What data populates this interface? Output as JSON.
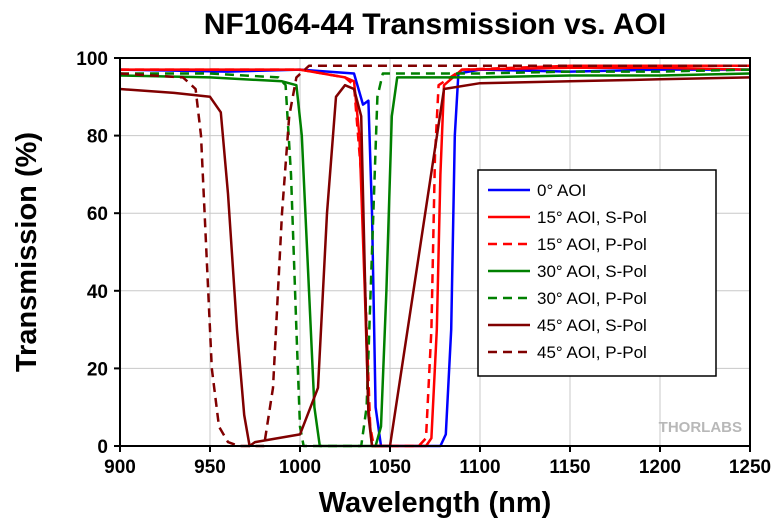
{
  "chart_data": {
    "type": "line",
    "title": "NF1064-44 Transmission vs. AOI",
    "xlabel": "Wavelength (nm)",
    "ylabel": "Transmission (%)",
    "xlim": [
      900,
      1250
    ],
    "ylim": [
      0,
      100
    ],
    "x_ticks": [
      900,
      950,
      1000,
      1050,
      1100,
      1150,
      1200,
      1250
    ],
    "y_ticks": [
      0,
      20,
      40,
      60,
      80,
      100
    ],
    "grid": true,
    "legend_position": "center-right",
    "watermark": "THORLABS",
    "series": [
      {
        "name": "0° AOI",
        "color": "#0000ff",
        "dash": "solid",
        "points": [
          [
            900,
            97
          ],
          [
            960,
            96.5
          ],
          [
            1000,
            97
          ],
          [
            1030,
            96
          ],
          [
            1035,
            88
          ],
          [
            1038,
            89
          ],
          [
            1040,
            60
          ],
          [
            1042,
            10
          ],
          [
            1045,
            0
          ],
          [
            1078,
            0
          ],
          [
            1081,
            3
          ],
          [
            1084,
            30
          ],
          [
            1086,
            80
          ],
          [
            1088,
            96
          ],
          [
            1100,
            97
          ],
          [
            1150,
            96.5
          ],
          [
            1200,
            97
          ],
          [
            1250,
            97
          ]
        ]
      },
      {
        "name": "15° AOI, S-Pol",
        "color": "#ff0000",
        "dash": "solid",
        "points": [
          [
            900,
            97
          ],
          [
            960,
            97
          ],
          [
            1000,
            97
          ],
          [
            1025,
            95
          ],
          [
            1030,
            94
          ],
          [
            1033,
            80
          ],
          [
            1036,
            40
          ],
          [
            1038,
            10
          ],
          [
            1040,
            0
          ],
          [
            1070,
            0
          ],
          [
            1073,
            2
          ],
          [
            1076,
            30
          ],
          [
            1078,
            70
          ],
          [
            1080,
            93
          ],
          [
            1090,
            97
          ],
          [
            1150,
            97.5
          ],
          [
            1200,
            97.5
          ],
          [
            1250,
            97
          ]
        ]
      },
      {
        "name": "15° AOI, P-Pol",
        "color": "#ff0000",
        "dash": "dashed",
        "points": [
          [
            900,
            97
          ],
          [
            960,
            97
          ],
          [
            1000,
            97
          ],
          [
            1025,
            95
          ],
          [
            1030,
            93
          ],
          [
            1034,
            70
          ],
          [
            1037,
            30
          ],
          [
            1039,
            5
          ],
          [
            1041,
            0
          ],
          [
            1066,
            0
          ],
          [
            1070,
            2
          ],
          [
            1073,
            30
          ],
          [
            1075,
            75
          ],
          [
            1077,
            93
          ],
          [
            1090,
            97
          ],
          [
            1150,
            98
          ],
          [
            1200,
            98
          ],
          [
            1250,
            98
          ]
        ]
      },
      {
        "name": "30° AOI, S-Pol",
        "color": "#008000",
        "dash": "solid",
        "points": [
          [
            900,
            95.5
          ],
          [
            950,
            95
          ],
          [
            990,
            94
          ],
          [
            998,
            93
          ],
          [
            1001,
            80
          ],
          [
            1005,
            40
          ],
          [
            1008,
            10
          ],
          [
            1011,
            0
          ],
          [
            1042,
            0
          ],
          [
            1045,
            5
          ],
          [
            1048,
            40
          ],
          [
            1051,
            85
          ],
          [
            1054,
            95
          ],
          [
            1100,
            95
          ],
          [
            1150,
            95.5
          ],
          [
            1200,
            95.5
          ],
          [
            1250,
            96
          ]
        ]
      },
      {
        "name": "30° AOI, P-Pol",
        "color": "#008000",
        "dash": "dashed",
        "points": [
          [
            900,
            96
          ],
          [
            950,
            96
          ],
          [
            988,
            95
          ],
          [
            992,
            93
          ],
          [
            995,
            70
          ],
          [
            998,
            30
          ],
          [
            1000,
            5
          ],
          [
            1002,
            0
          ],
          [
            1034,
            0
          ],
          [
            1037,
            10
          ],
          [
            1040,
            50
          ],
          [
            1043,
            90
          ],
          [
            1046,
            96
          ],
          [
            1100,
            96
          ],
          [
            1150,
            96.5
          ],
          [
            1200,
            96.5
          ],
          [
            1250,
            97
          ]
        ]
      },
      {
        "name": "45° AOI, S-Pol",
        "color": "#800000",
        "dash": "solid",
        "points": [
          [
            900,
            92
          ],
          [
            930,
            91
          ],
          [
            950,
            90
          ],
          [
            956,
            86
          ],
          [
            960,
            65
          ],
          [
            965,
            30
          ],
          [
            969,
            8
          ],
          [
            972,
            0
          ],
          [
            975,
            1
          ],
          [
            1000,
            3
          ],
          [
            1010,
            15
          ],
          [
            1015,
            60
          ],
          [
            1020,
            90
          ],
          [
            1025,
            93
          ],
          [
            1030,
            92
          ],
          [
            1034,
            85
          ],
          [
            1036,
            45
          ],
          [
            1038,
            8
          ],
          [
            1040,
            0
          ],
          [
            1050,
            0
          ],
          [
            1080,
            92
          ],
          [
            1100,
            93.5
          ],
          [
            1150,
            94
          ],
          [
            1200,
            94.5
          ],
          [
            1250,
            95
          ]
        ]
      },
      {
        "name": "45° AOI, P-Pol",
        "color": "#800000",
        "dash": "dashed",
        "points": [
          [
            900,
            96
          ],
          [
            935,
            95
          ],
          [
            942,
            92
          ],
          [
            945,
            80
          ],
          [
            948,
            50
          ],
          [
            951,
            20
          ],
          [
            955,
            5
          ],
          [
            960,
            1
          ],
          [
            966,
            0
          ],
          [
            980,
            0
          ],
          [
            985,
            15
          ],
          [
            990,
            60
          ],
          [
            994,
            85
          ],
          [
            998,
            95
          ],
          [
            1005,
            98
          ],
          [
            1050,
            98
          ],
          [
            1100,
            98
          ],
          [
            1150,
            98
          ],
          [
            1200,
            98
          ],
          [
            1250,
            98
          ]
        ]
      }
    ]
  }
}
